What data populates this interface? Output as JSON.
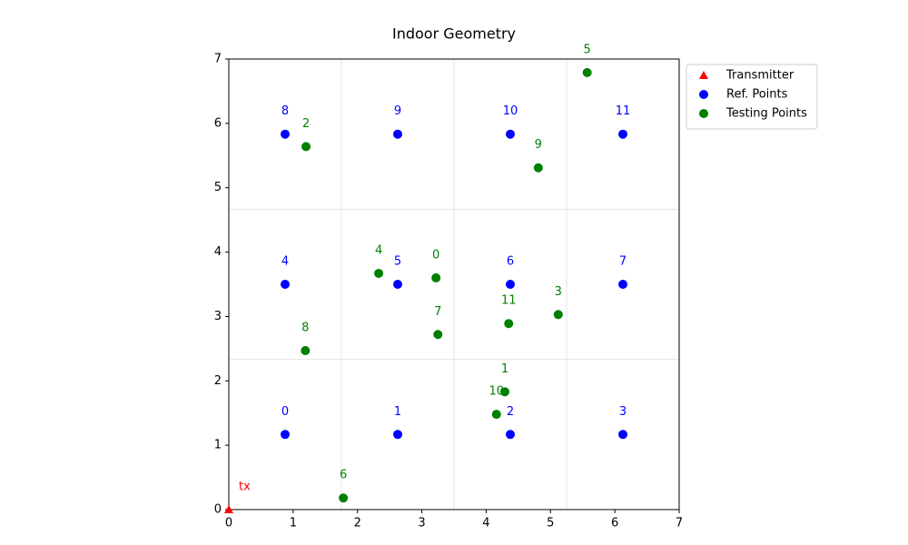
{
  "chart_data": {
    "type": "scatter",
    "title": "Indoor Geometry",
    "xlim": [
      0,
      7
    ],
    "ylim": [
      0,
      7
    ],
    "xticks": [
      0,
      1,
      2,
      3,
      4,
      5,
      6,
      7
    ],
    "yticks": [
      0,
      1,
      2,
      3,
      4,
      5,
      6,
      7
    ],
    "xgrid": [
      1.75,
      3.5,
      5.25
    ],
    "ygrid": [
      2.333,
      4.667
    ],
    "legend": "outside upper right",
    "series": [
      {
        "name": "Transmitter",
        "color": "#ff0000",
        "marker": "triangle",
        "x": [
          0
        ],
        "y": [
          0
        ],
        "labels": [
          "tx"
        ]
      },
      {
        "name": "Ref. Points",
        "color": "#0000ff",
        "marker": "circle",
        "x": [
          0.875,
          2.625,
          4.375,
          6.125,
          0.875,
          2.625,
          4.375,
          6.125,
          0.875,
          2.625,
          4.375,
          6.125
        ],
        "y": [
          1.167,
          1.167,
          1.167,
          1.167,
          3.5,
          3.5,
          3.5,
          3.5,
          5.833,
          5.833,
          5.833,
          5.833
        ],
        "labels": [
          "0",
          "1",
          "2",
          "3",
          "4",
          "5",
          "6",
          "7",
          "8",
          "9",
          "10",
          "11"
        ]
      },
      {
        "name": "Testing Points",
        "color": "#008000",
        "marker": "circle",
        "x": [
          3.22,
          4.29,
          1.2,
          5.12,
          2.33,
          5.57,
          1.78,
          3.25,
          1.19,
          4.81,
          4.16,
          4.35
        ],
        "y": [
          3.6,
          1.83,
          5.64,
          3.03,
          3.67,
          6.79,
          0.18,
          2.72,
          2.47,
          5.31,
          1.48,
          2.89
        ],
        "labels": [
          "0",
          "1",
          "2",
          "3",
          "4",
          "5",
          "6",
          "7",
          "8",
          "9",
          "10",
          "11"
        ]
      }
    ]
  }
}
